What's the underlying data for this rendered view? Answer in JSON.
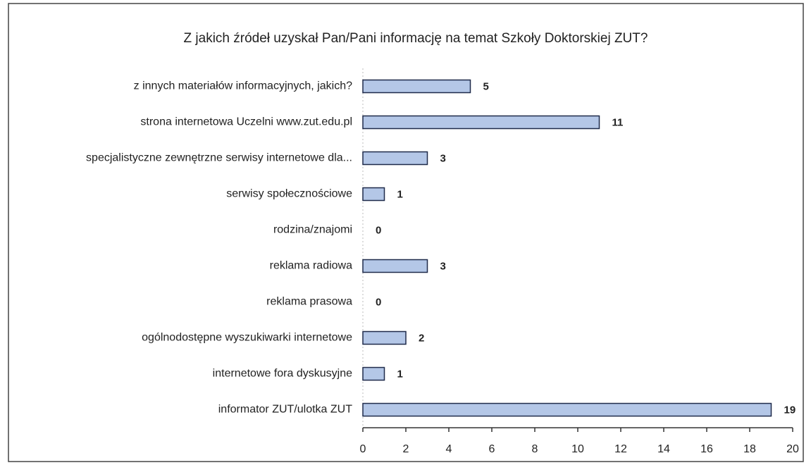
{
  "chart_data": {
    "type": "bar",
    "orientation": "horizontal",
    "title": "Z jakich źródeł uzyskał Pan/Pani informację na temat Szkoły Doktorskiej ZUT?",
    "categories": [
      "z innych materiałów informacyjnych, jakich?",
      "strona internetowa Uczelni www.zut.edu.pl",
      "specjalistyczne zewnętrzne serwisy internetowe dla...",
      "serwisy społecznościowe",
      "rodzina/znajomi",
      "reklama radiowa",
      "reklama prasowa",
      "ogólnodostępne wyszukiwarki internetowe",
      "internetowe fora dyskusyjne",
      "informator ZUT/ulotka ZUT"
    ],
    "values": [
      5,
      11,
      3,
      1,
      0,
      3,
      0,
      2,
      1,
      19
    ],
    "color": "#b4c7e7",
    "xlim": [
      0,
      20
    ],
    "xticks": [
      0,
      2,
      4,
      6,
      8,
      10,
      12,
      14,
      16,
      18,
      20
    ]
  }
}
